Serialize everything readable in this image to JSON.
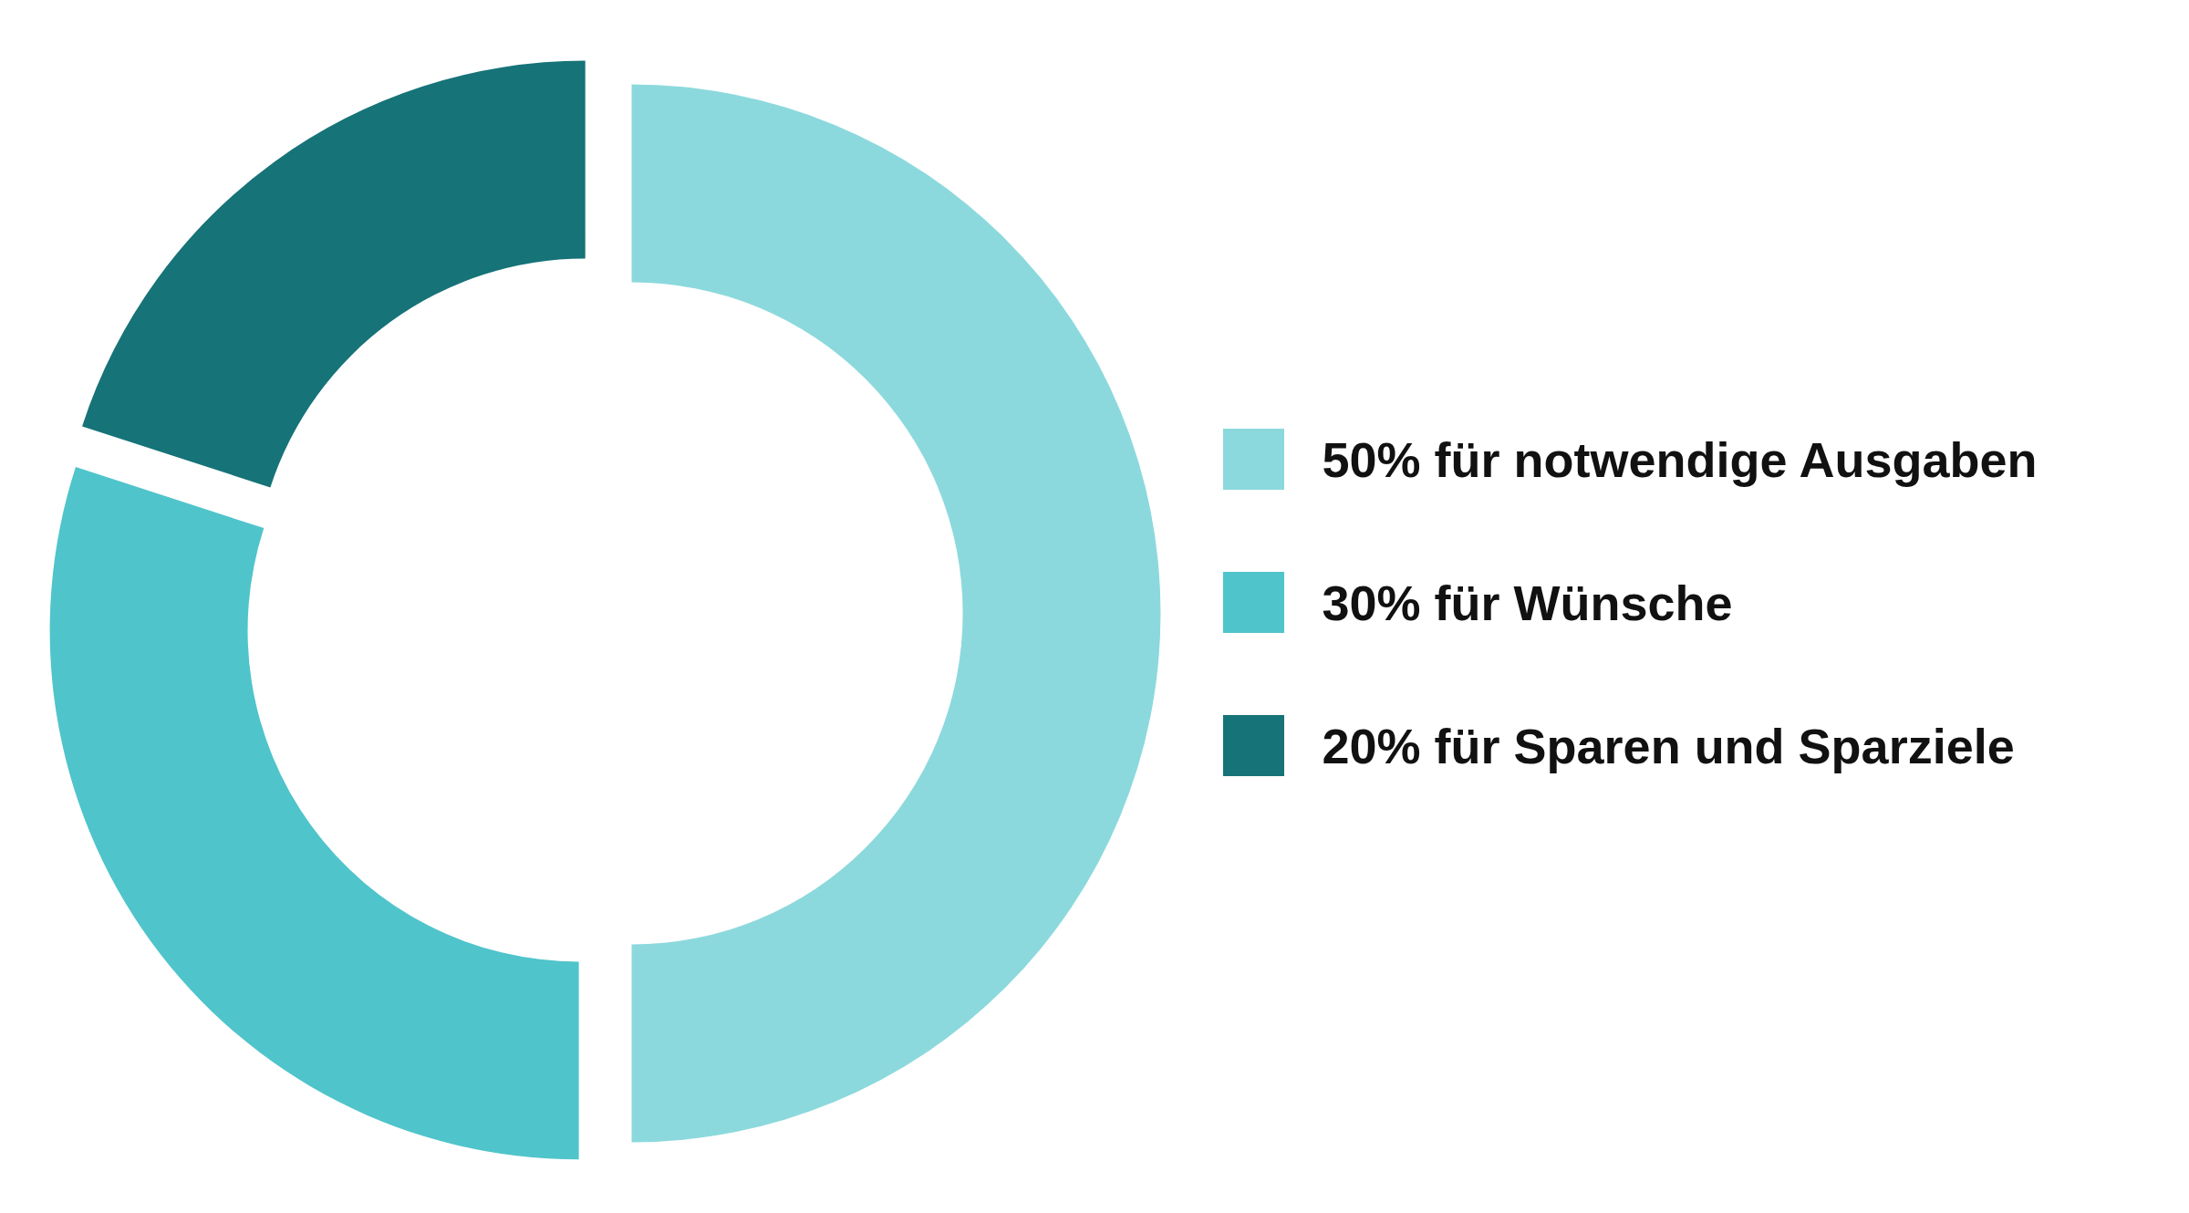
{
  "chart_data": {
    "type": "donut",
    "categories": [
      "50% für notwendige Ausgaben",
      "30% für Wünsche",
      "20% für Sparen und Sparziele"
    ],
    "values": [
      50,
      30,
      20
    ],
    "colors": [
      "#8cd9dd",
      "#4fc4cb",
      "#167378"
    ],
    "legend": "right"
  }
}
